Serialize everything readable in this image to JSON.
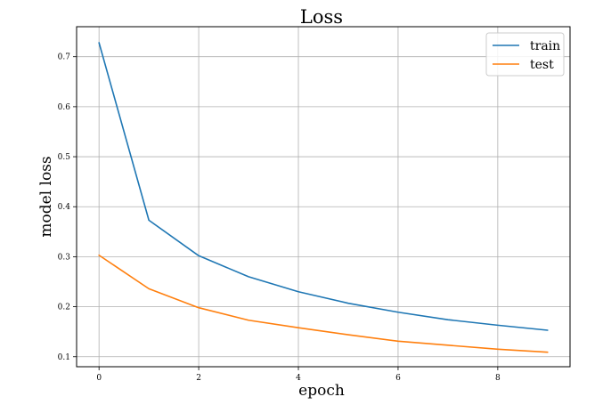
{
  "chart_data": {
    "type": "line",
    "title": "Loss",
    "xlabel": "epoch",
    "ylabel": "model loss",
    "x": [
      0,
      1,
      2,
      3,
      4,
      5,
      6,
      7,
      8,
      9
    ],
    "xlim": [
      -0.45,
      9.45
    ],
    "ylim": [
      0.08,
      0.76
    ],
    "xticks": [
      0,
      2,
      4,
      6,
      8
    ],
    "yticks": [
      0.1,
      0.2,
      0.3,
      0.4,
      0.5,
      0.6,
      0.7
    ],
    "xtick_labels": [
      "0",
      "2",
      "4",
      "6",
      "8"
    ],
    "ytick_labels": [
      "0.1",
      "0.2",
      "0.3",
      "0.4",
      "0.5",
      "0.6",
      "0.7"
    ],
    "grid": true,
    "legend_position": "top-right",
    "series": [
      {
        "name": "train",
        "color": "#1f77b4",
        "values": [
          0.728,
          0.373,
          0.302,
          0.26,
          0.23,
          0.207,
          0.189,
          0.174,
          0.163,
          0.153
        ]
      },
      {
        "name": "test",
        "color": "#ff7f0e",
        "values": [
          0.303,
          0.236,
          0.198,
          0.173,
          0.158,
          0.144,
          0.131,
          0.123,
          0.115,
          0.109
        ]
      }
    ]
  }
}
